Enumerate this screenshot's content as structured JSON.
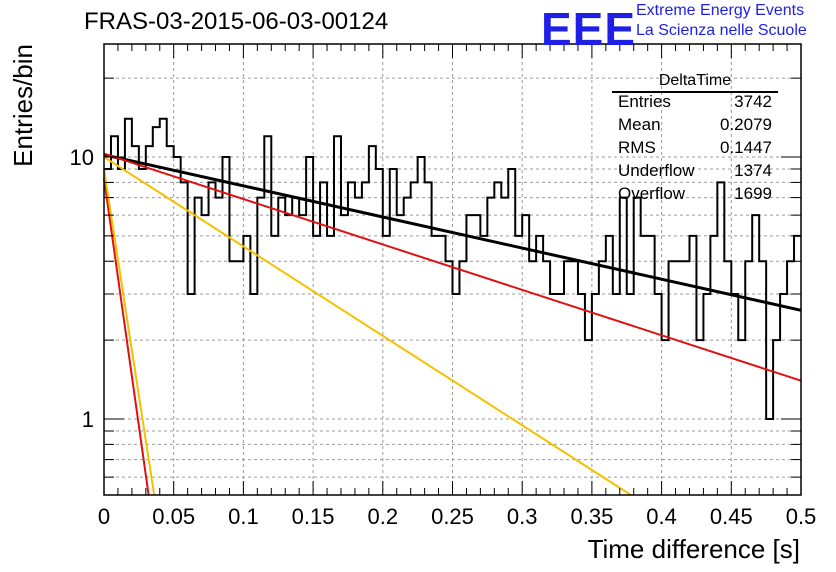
{
  "title": "FRAS-03-2015-06-03-00124",
  "logo": {
    "mark": "EEE",
    "line1": "Extreme Energy Events",
    "line2": "La Scienza nelle Scuole",
    "color": "#1f1fe6"
  },
  "stats": {
    "title": "DeltaTime",
    "rows": [
      {
        "label": "Entries",
        "value": "3742"
      },
      {
        "label": "Mean",
        "value": "0.2079"
      },
      {
        "label": "RMS",
        "value": "0.1447"
      },
      {
        "label": "Underflow",
        "value": "1374"
      },
      {
        "label": "Overflow",
        "value": "1699"
      }
    ]
  },
  "chart_data": {
    "type": "line",
    "title": "FRAS-03-2015-06-03-00124",
    "xlabel": "Time difference [s]",
    "ylabel": "Entries/bin",
    "xlim": [
      0,
      0.5
    ],
    "ylim": [
      0.5,
      25
    ],
    "yscale": "log",
    "grid": true,
    "x_ticks": [
      0,
      0.05,
      0.1,
      0.15,
      0.2,
      0.25,
      0.3,
      0.35,
      0.4,
      0.45,
      0.5
    ],
    "x_tick_labels": [
      "0",
      "0.05",
      "0.1",
      "0.15",
      "0.2",
      "0.25",
      "0.3",
      "0.35",
      "0.4",
      "0.45",
      "0.5"
    ],
    "y_ticks": [
      1,
      10
    ],
    "y_tick_labels": [
      "1",
      "10"
    ],
    "histogram": {
      "bin_width": 0.005,
      "color": "#000000",
      "values": [
        9,
        12,
        9,
        14,
        11,
        9,
        11,
        13,
        14,
        11,
        10,
        8,
        3,
        7,
        6,
        8,
        7,
        10,
        4,
        4,
        5,
        3,
        7,
        12,
        5,
        7,
        6,
        7,
        6,
        10,
        5,
        8,
        5,
        12,
        6,
        8,
        7,
        8,
        11,
        9,
        5,
        9,
        6,
        7,
        8,
        10,
        8,
        5,
        5,
        4,
        3,
        4,
        6,
        6,
        5,
        7,
        8,
        7,
        9,
        5,
        6,
        4,
        5,
        4,
        3,
        3,
        4,
        4,
        3,
        2,
        3,
        4,
        5,
        3,
        7,
        3,
        7,
        5,
        5,
        3,
        2,
        4,
        4,
        4,
        5,
        2,
        3,
        5,
        8,
        4,
        3,
        2,
        4,
        6,
        4,
        1,
        2,
        3,
        4,
        5
      ]
    },
    "series": [
      {
        "color": "#000000",
        "x": [
          0,
          0.5
        ],
        "y": [
          10.2,
          2.6
        ]
      },
      {
        "color": "#e01010",
        "x": [
          0,
          0.5
        ],
        "y": [
          10.3,
          1.4
        ]
      },
      {
        "color": "#f5c000",
        "x": [
          0,
          0.378
        ],
        "y": [
          10.0,
          0.5
        ]
      },
      {
        "color": "#e01010",
        "x": [
          0,
          0.032
        ],
        "y": [
          8.3,
          0.5
        ]
      },
      {
        "color": "#f5c000",
        "x": [
          0,
          0.036
        ],
        "y": [
          9.0,
          0.5
        ]
      }
    ]
  }
}
